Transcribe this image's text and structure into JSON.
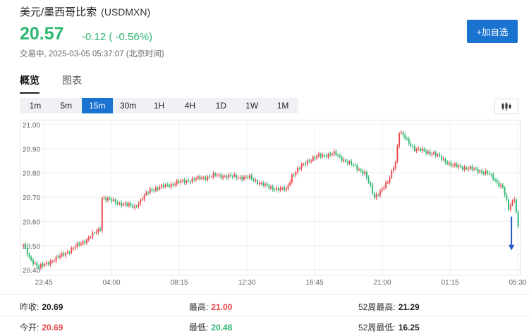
{
  "header": {
    "title": "美元/墨西哥比索",
    "symbol": "(USDMXN)",
    "price": "20.57",
    "change": "-0.12 ( -0.56%)",
    "status": "交易中, 2025-03-05 05:37:07 (北京时间)",
    "add_button": "+加自选"
  },
  "tabs": [
    {
      "label": "概览",
      "active": true
    },
    {
      "label": "图表",
      "active": false
    }
  ],
  "intervals": [
    "1m",
    "5m",
    "15m",
    "30m",
    "1H",
    "4H",
    "1D",
    "1W",
    "1M"
  ],
  "active_interval": "15m",
  "chart_type_icon": "candlestick-icon",
  "colors": {
    "up": "#e8454a",
    "down": "#2eb872",
    "accent": "#1a73d1"
  },
  "chart_data": {
    "type": "candlestick",
    "y_ticks": [
      "21.00",
      "20.90",
      "20.80",
      "20.70",
      "20.60",
      "20.50",
      "20.40"
    ],
    "ylim": [
      20.38,
      21.02
    ],
    "x_ticks": [
      "23:45",
      "04:00",
      "08:15",
      "12:30",
      "16:45",
      "21:00",
      "01:15",
      "05:30"
    ],
    "grid": true,
    "anchors": [
      [
        0,
        20.5
      ],
      [
        3,
        20.45
      ],
      [
        8,
        20.41
      ],
      [
        20,
        20.46
      ],
      [
        32,
        20.52
      ],
      [
        40,
        20.57
      ],
      [
        41,
        20.7
      ],
      [
        48,
        20.68
      ],
      [
        58,
        20.66
      ],
      [
        66,
        20.73
      ],
      [
        80,
        20.76
      ],
      [
        100,
        20.79
      ],
      [
        118,
        20.78
      ],
      [
        128,
        20.74
      ],
      [
        137,
        20.73
      ],
      [
        140,
        20.79
      ],
      [
        148,
        20.85
      ],
      [
        154,
        20.87
      ],
      [
        162,
        20.88
      ],
      [
        170,
        20.84
      ],
      [
        178,
        20.8
      ],
      [
        183,
        20.7
      ],
      [
        190,
        20.76
      ],
      [
        194,
        20.85
      ],
      [
        196,
        20.97
      ],
      [
        204,
        20.9
      ],
      [
        214,
        20.88
      ],
      [
        224,
        20.83
      ],
      [
        232,
        20.82
      ],
      [
        242,
        20.8
      ],
      [
        250,
        20.74
      ],
      [
        253,
        20.65
      ],
      [
        256,
        20.7
      ],
      [
        258,
        20.58
      ]
    ],
    "marker": "arrow-down-icon"
  },
  "stats": {
    "row1": [
      {
        "label": "昨收:",
        "value": "20.69",
        "color": "dark"
      },
      {
        "label": "最高:",
        "value": "21.00",
        "color": "red"
      },
      {
        "label": "52周最高:",
        "value": "21.29",
        "color": "dark"
      }
    ],
    "row2": [
      {
        "label": "今开:",
        "value": "20.69",
        "color": "red"
      },
      {
        "label": "最低:",
        "value": "20.48",
        "color": "grn"
      },
      {
        "label": "52周最低:",
        "value": "16.25",
        "color": "dark"
      }
    ]
  }
}
